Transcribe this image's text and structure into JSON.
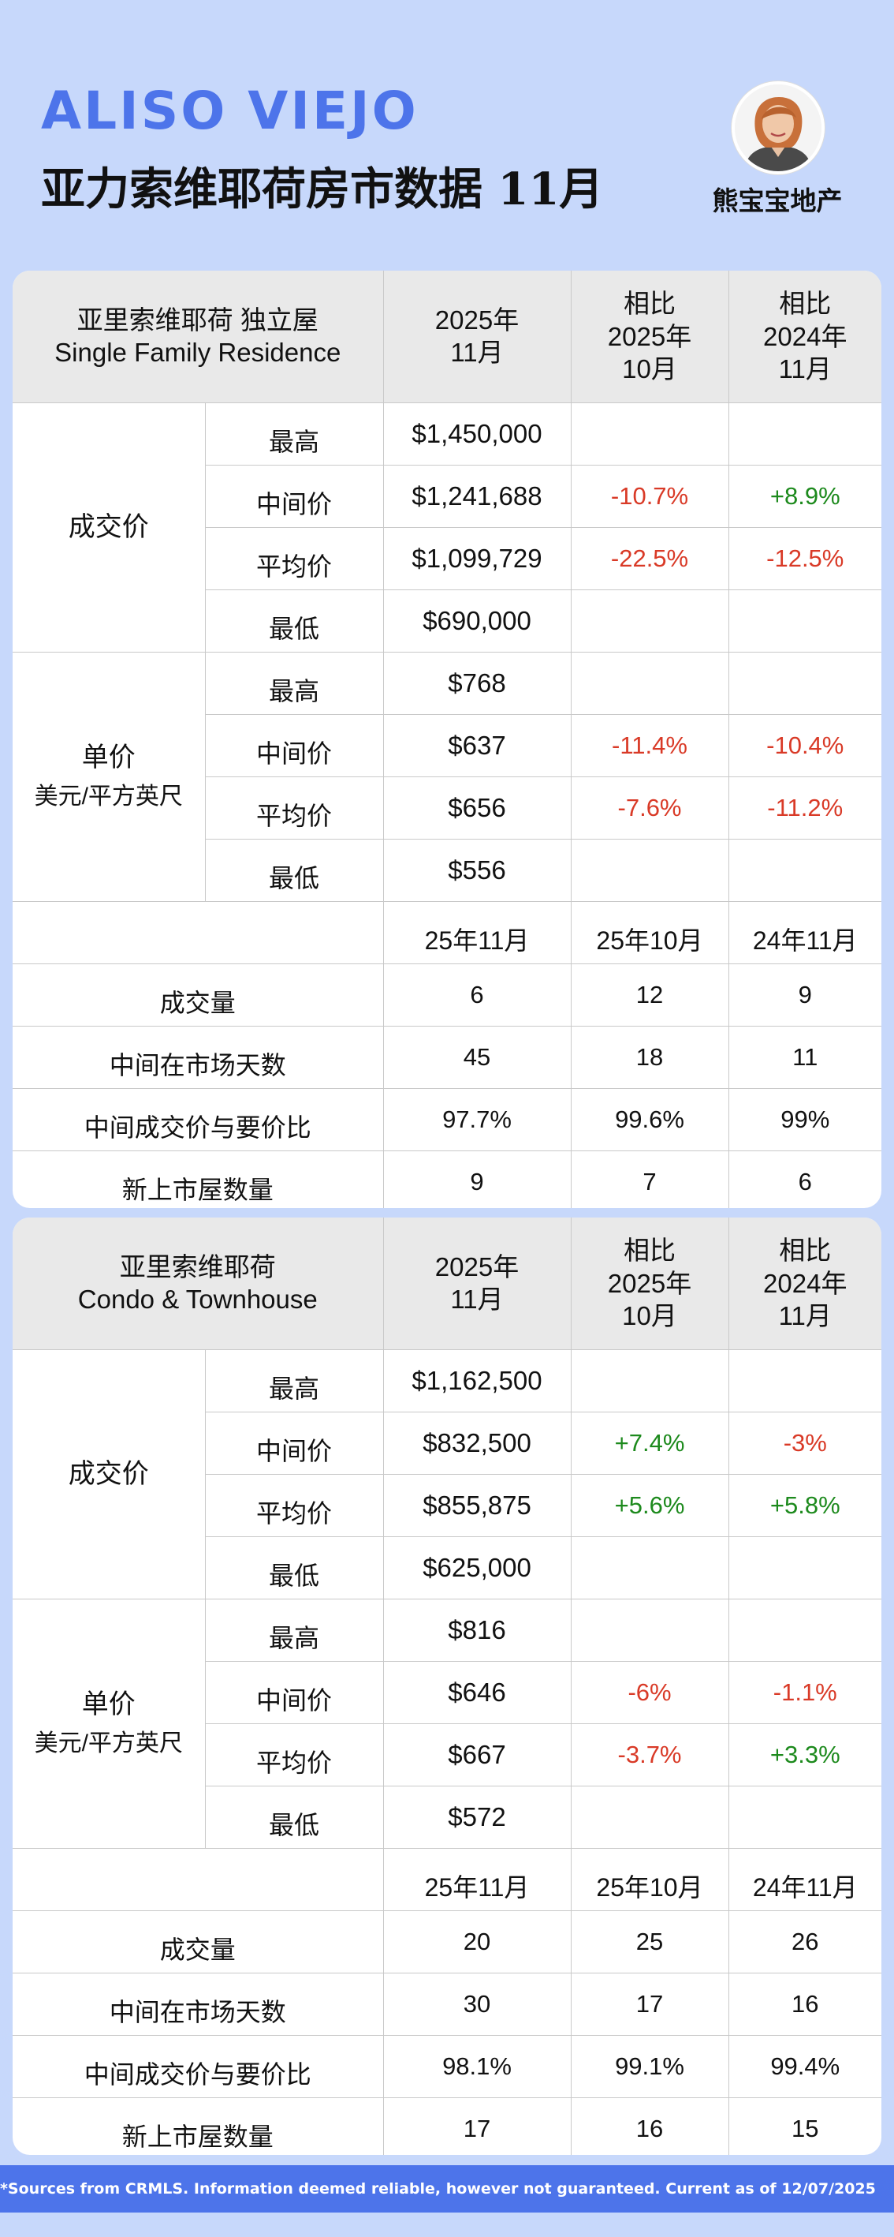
{
  "header": {
    "city": "ALISO VIEJO",
    "subtitle": "亚力索维耶荷房市数据 11月",
    "brand": "熊宝宝地产"
  },
  "colors": {
    "accent": "#4d74ea",
    "background": "#c7d8fb",
    "negative": "#d93a27",
    "positive": "#1d8a1d"
  },
  "sfr": {
    "title1": "亚里索维耶荷  独立屋",
    "title2": "Single Family Residence",
    "col1": [
      "2025年",
      "11月"
    ],
    "col2": [
      "相比",
      "2025年",
      "10月"
    ],
    "col3": [
      "相比",
      "2024年",
      "11月"
    ],
    "price_label": "成交价",
    "price": [
      {
        "label": "最高",
        "value": "$1,450,000",
        "mom": "",
        "yoy": ""
      },
      {
        "label": "中间价",
        "value": "$1,241,688",
        "mom": "-10.7%",
        "yoy": "+8.9%"
      },
      {
        "label": "平均价",
        "value": "$1,099,729",
        "mom": "-22.5%",
        "yoy": "-12.5%"
      },
      {
        "label": "最低",
        "value": "$690,000",
        "mom": "",
        "yoy": ""
      }
    ],
    "unit_label": "单价",
    "unit_sub": "美元/平方英尺",
    "unit": [
      {
        "label": "最高",
        "value": "$768",
        "mom": "",
        "yoy": ""
      },
      {
        "label": "中间价",
        "value": "$637",
        "mom": "-11.4%",
        "yoy": "-10.4%"
      },
      {
        "label": "平均价",
        "value": "$656",
        "mom": "-7.6%",
        "yoy": "-11.2%"
      },
      {
        "label": "最低",
        "value": "$556",
        "mom": "",
        "yoy": ""
      }
    ],
    "period_headers": [
      "25年11月",
      "25年10月",
      "24年11月"
    ],
    "stats": [
      {
        "label": "成交量",
        "values": [
          "6",
          "12",
          "9"
        ]
      },
      {
        "label": "中间在市场天数",
        "values": [
          "45",
          "18",
          "11"
        ]
      },
      {
        "label": "中间成交价与要价比",
        "values": [
          "97.7%",
          "99.6%",
          "99%"
        ]
      },
      {
        "label": "新上市屋数量",
        "values": [
          "9",
          "7",
          "6"
        ]
      }
    ]
  },
  "condo": {
    "title1": "亚里索维耶荷",
    "title2": "Condo & Townhouse",
    "col1": [
      "2025年",
      "11月"
    ],
    "col2": [
      "相比",
      "2025年",
      "10月"
    ],
    "col3": [
      "相比",
      "2024年",
      "11月"
    ],
    "price_label": "成交价",
    "price": [
      {
        "label": "最高",
        "value": "$1,162,500",
        "mom": "",
        "yoy": ""
      },
      {
        "label": "中间价",
        "value": "$832,500",
        "mom": "+7.4%",
        "yoy": "-3%"
      },
      {
        "label": "平均价",
        "value": "$855,875",
        "mom": "+5.6%",
        "yoy": "+5.8%"
      },
      {
        "label": "最低",
        "value": "$625,000",
        "mom": "",
        "yoy": ""
      }
    ],
    "unit_label": "单价",
    "unit_sub": "美元/平方英尺",
    "unit": [
      {
        "label": "最高",
        "value": "$816",
        "mom": "",
        "yoy": ""
      },
      {
        "label": "中间价",
        "value": "$646",
        "mom": "-6%",
        "yoy": "-1.1%"
      },
      {
        "label": "平均价",
        "value": "$667",
        "mom": "-3.7%",
        "yoy": "+3.3%"
      },
      {
        "label": "最低",
        "value": "$572",
        "mom": "",
        "yoy": ""
      }
    ],
    "period_headers": [
      "25年11月",
      "25年10月",
      "24年11月"
    ],
    "stats": [
      {
        "label": "成交量",
        "values": [
          "20",
          "25",
          "26"
        ]
      },
      {
        "label": "中间在市场天数",
        "values": [
          "30",
          "17",
          "16"
        ]
      },
      {
        "label": "中间成交价与要价比",
        "values": [
          "98.1%",
          "99.1%",
          "99.4%"
        ]
      },
      {
        "label": "新上市屋数量",
        "values": [
          "17",
          "16",
          "15"
        ]
      }
    ]
  },
  "footer": "*Sources from CRMLS. Information deemed reliable, however not guaranteed. Current as of 12/07/2025"
}
